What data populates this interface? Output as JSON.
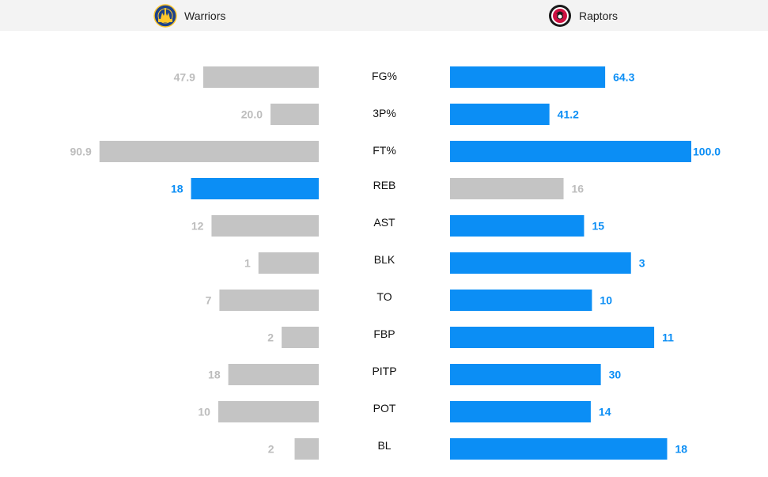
{
  "header": {
    "home_team": "Warriors",
    "away_team": "Raptors",
    "home_logo_icon": "warriors-logo-icon",
    "away_logo_icon": "raptors-logo-icon"
  },
  "colors": {
    "highlight": "#0b8ef5",
    "muted": "#c4c4c4",
    "muted_text": "#bdbdbd",
    "label_text": "#111111"
  },
  "chart_data": {
    "type": "bar",
    "orientation": "horizontal-mirrored",
    "categories": [
      "FG%",
      "3P%",
      "FT%",
      "REB",
      "AST",
      "BLK",
      "TO",
      "FBP",
      "PITP",
      "POT",
      "BL"
    ],
    "series": [
      {
        "name": "Warriors",
        "values": [
          47.9,
          20.0,
          90.9,
          18,
          12,
          1,
          7,
          2,
          18,
          10,
          2
        ],
        "labels": [
          "47.9",
          "20.0",
          "90.9",
          "18",
          "12",
          "1",
          "7",
          "2",
          "18",
          "10",
          "2"
        ]
      },
      {
        "name": "Raptors",
        "values": [
          64.3,
          41.2,
          100.0,
          16,
          15,
          3,
          10,
          11,
          30,
          14,
          18
        ],
        "labels": [
          "64.3",
          "41.2",
          "100.0",
          "16",
          "15",
          "3",
          "10",
          "11",
          "30",
          "14",
          "18"
        ]
      }
    ],
    "highlight_side": [
      "right",
      "right",
      "right",
      "left",
      "right",
      "right",
      "right",
      "right",
      "right",
      "right",
      "right"
    ],
    "scale_max": [
      100,
      100,
      100,
      34,
      27,
      4,
      17,
      13,
      48,
      24,
      20
    ],
    "grid": false,
    "legend": "top"
  }
}
